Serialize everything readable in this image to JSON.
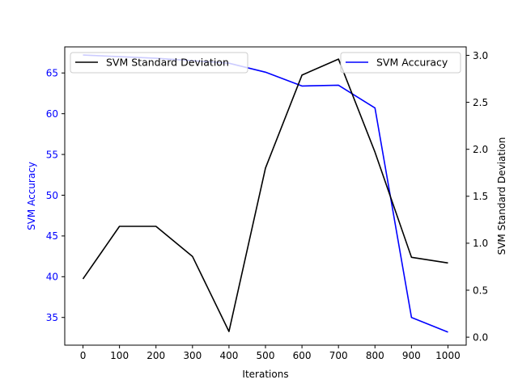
{
  "chart_data": {
    "type": "line",
    "title": "",
    "xlabel": "Iterations",
    "ylabel_left": "SVM Accuracy",
    "ylabel_right": "SVM Standard Deviation",
    "x": [
      0,
      100,
      200,
      300,
      400,
      500,
      600,
      700,
      800,
      900,
      1000
    ],
    "x_ticks": [
      "0",
      "100",
      "200",
      "300",
      "400",
      "500",
      "600",
      "700",
      "800",
      "900",
      "1000"
    ],
    "xlim": [
      -50,
      1050
    ],
    "left_axis": {
      "ylim": [
        31.6,
        68.2
      ],
      "ticks": [
        35,
        40,
        45,
        50,
        55,
        60,
        65
      ],
      "tick_labels": [
        "35",
        "40",
        "45",
        "50",
        "55",
        "60",
        "65"
      ],
      "color": "#0000ff"
    },
    "right_axis": {
      "ylim": [
        -0.085,
        3.09
      ],
      "ticks": [
        0.0,
        0.5,
        1.0,
        1.5,
        2.0,
        2.5,
        3.0
      ],
      "tick_labels": [
        "0.0",
        "0.5",
        "1.0",
        "1.5",
        "2.0",
        "2.5",
        "3.0"
      ],
      "color": "#000000"
    },
    "series": [
      {
        "name": "SVM Accuracy",
        "axis": "left",
        "color": "#0000ff",
        "values": [
          67.2,
          67.0,
          66.8,
          66.5,
          66.2,
          65.1,
          63.4,
          63.5,
          60.7,
          35.0,
          33.2
        ],
        "legend": "top-right"
      },
      {
        "name": "SVM Standard Deviation",
        "axis": "right",
        "color": "#000000",
        "values": [
          0.62,
          1.18,
          1.18,
          0.86,
          0.06,
          1.8,
          2.79,
          2.96,
          1.97,
          0.85,
          0.79
        ],
        "legend": "top-left"
      }
    ],
    "grid": false
  }
}
